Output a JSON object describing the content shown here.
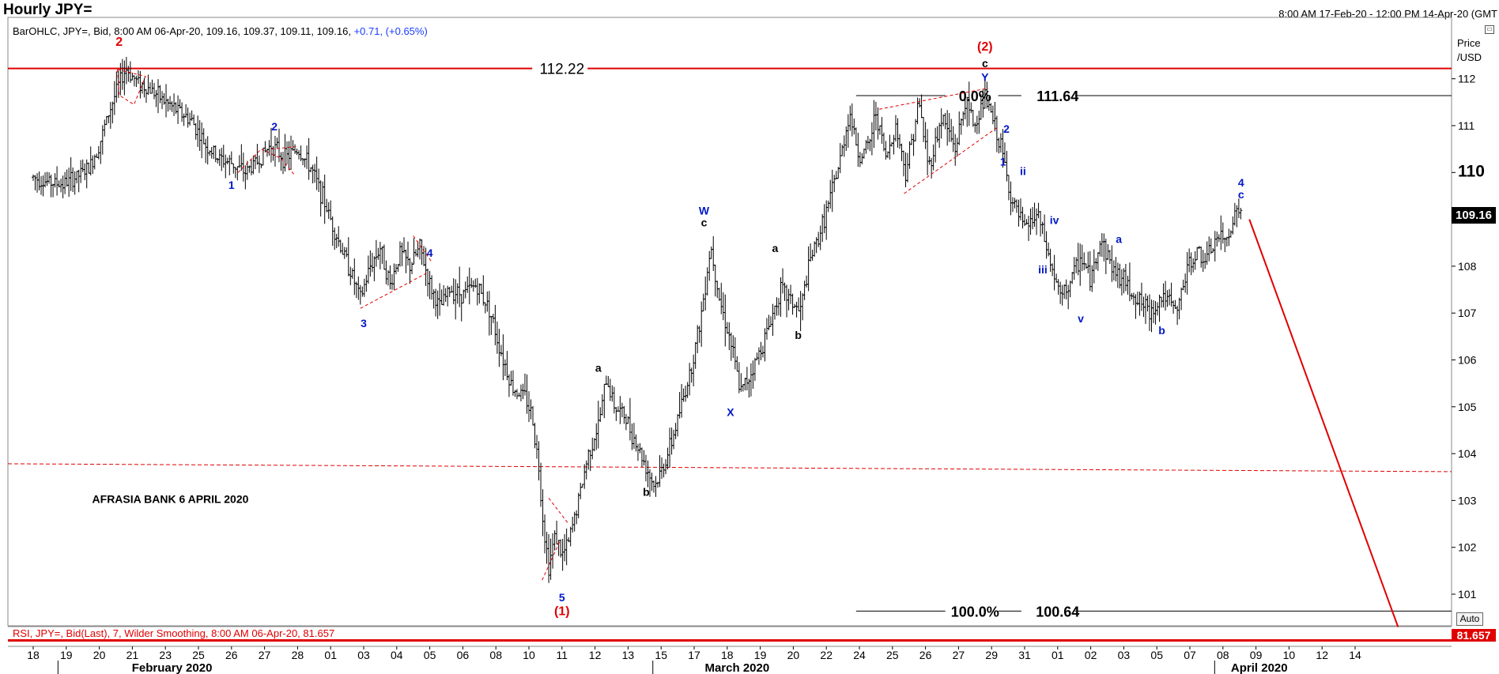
{
  "header": {
    "title": "Hourly JPY=",
    "range": "8:00 AM 17-Feb-20 - 12:00 PM 14-Apr-20 (GMT",
    "info_prefix": "BarOHLC, JPY=, Bid, 8:00 AM 06-Apr-20, 109.16, 109.37, 109.11, 109.16, ",
    "info_change": "+0.71, (+0.65%)"
  },
  "price_axis": {
    "header_line1": "Price",
    "header_line2": "/USD",
    "auto_label": "Auto"
  },
  "rsi": {
    "info": "RSI, JPY=, Bid(Last),  7, Wilder Smoothing, 8:00 AM 06-Apr-20, 81.657",
    "value": "81.657"
  },
  "colors": {
    "bars": "#000000",
    "resistance": "#e00000",
    "fib": "#000000",
    "wave_blue": "#0018c8",
    "wave_red": "#e00000",
    "trend": "#e00000"
  },
  "chart_data": {
    "type": "ohlc",
    "instrument": "JPY=",
    "interval": "Hourly",
    "ylim": [
      100.3,
      113.3
    ],
    "y_ticks": [
      {
        "value": 101,
        "label": "101"
      },
      {
        "value": 102,
        "label": "102"
      },
      {
        "value": 103,
        "label": "103"
      },
      {
        "value": 104,
        "label": "104"
      },
      {
        "value": 105,
        "label": "105"
      },
      {
        "value": 106,
        "label": "106"
      },
      {
        "value": 107,
        "label": "107"
      },
      {
        "value": 108,
        "label": "108"
      },
      {
        "value": 109,
        "label": "109"
      },
      {
        "value": 110,
        "label": "110",
        "major": true
      },
      {
        "value": 111,
        "label": "111"
      },
      {
        "value": 112,
        "label": "112"
      }
    ],
    "last_price": "109.16",
    "x_days": [
      "18",
      "19",
      "20",
      "21",
      "23",
      "25",
      "26",
      "27",
      "28",
      "01",
      "03",
      "04",
      "05",
      "06",
      "08",
      "10",
      "11",
      "12",
      "13",
      "15",
      "17",
      "18",
      "19",
      "20",
      "22",
      "24",
      "25",
      "26",
      "27",
      "29",
      "31",
      "01",
      "02",
      "03",
      "05",
      "07",
      "08",
      "09",
      "10",
      "12",
      "14"
    ],
    "x_months": [
      {
        "label": "February 2020",
        "after_day": 1
      },
      {
        "label": "March 2020",
        "after_day": 19
      },
      {
        "label": "April 2020",
        "after_day": 36
      }
    ],
    "price_path": [
      [
        0,
        109.9
      ],
      [
        0.4,
        109.8
      ],
      [
        0.9,
        109.75
      ],
      [
        1.3,
        109.9
      ],
      [
        1.7,
        110.1
      ],
      [
        2.0,
        110.6
      ],
      [
        2.3,
        111.3
      ],
      [
        2.6,
        111.9
      ],
      [
        2.8,
        112.22
      ],
      [
        3.0,
        112.05
      ],
      [
        3.2,
        111.9
      ],
      [
        3.6,
        111.75
      ],
      [
        4.0,
        111.5
      ],
      [
        4.4,
        111.3
      ],
      [
        4.8,
        111.1
      ],
      [
        5.2,
        110.6
      ],
      [
        5.6,
        110.3
      ],
      [
        6.0,
        110.2
      ],
      [
        6.4,
        110.0
      ],
      [
        6.8,
        110.25
      ],
      [
        7.2,
        110.6
      ],
      [
        7.6,
        110.3
      ],
      [
        8.0,
        110.5
      ],
      [
        8.4,
        110.1
      ],
      [
        8.8,
        109.4
      ],
      [
        9.2,
        108.6
      ],
      [
        9.6,
        107.9
      ],
      [
        9.9,
        107.3
      ],
      [
        10.2,
        108.0
      ],
      [
        10.5,
        108.4
      ],
      [
        10.8,
        107.6
      ],
      [
        11.1,
        108.3
      ],
      [
        11.4,
        108.0
      ],
      [
        11.7,
        108.4
      ],
      [
        12.0,
        107.6
      ],
      [
        12.3,
        107.1
      ],
      [
        12.6,
        107.5
      ],
      [
        13.0,
        107.4
      ],
      [
        13.4,
        107.6
      ],
      [
        13.8,
        107.1
      ],
      [
        14.1,
        106.3
      ],
      [
        14.5,
        105.4
      ],
      [
        14.9,
        105.2
      ],
      [
        15.1,
        104.8
      ],
      [
        15.3,
        103.7
      ],
      [
        15.45,
        102.4
      ],
      [
        15.6,
        101.6
      ],
      [
        15.8,
        102.3
      ],
      [
        16.0,
        101.8
      ],
      [
        16.2,
        102.1
      ],
      [
        16.5,
        103.0
      ],
      [
        16.8,
        104.0
      ],
      [
        17.1,
        104.6
      ],
      [
        17.35,
        105.6
      ],
      [
        17.6,
        105.0
      ],
      [
        17.9,
        104.8
      ],
      [
        18.2,
        104.3
      ],
      [
        18.5,
        103.8
      ],
      [
        18.8,
        103.3
      ],
      [
        19.0,
        103.6
      ],
      [
        19.3,
        104.2
      ],
      [
        19.6,
        105.0
      ],
      [
        19.9,
        105.8
      ],
      [
        20.2,
        106.9
      ],
      [
        20.5,
        108.45
      ],
      [
        20.8,
        107.2
      ],
      [
        21.1,
        106.4
      ],
      [
        21.4,
        105.3
      ],
      [
        21.7,
        105.7
      ],
      [
        22.0,
        106.2
      ],
      [
        22.3,
        106.8
      ],
      [
        22.6,
        107.5
      ],
      [
        22.9,
        107.3
      ],
      [
        23.2,
        107.0
      ],
      [
        23.5,
        108.1
      ],
      [
        23.8,
        108.7
      ],
      [
        24.1,
        109.4
      ],
      [
        24.4,
        110.2
      ],
      [
        24.7,
        111.3
      ],
      [
        25.0,
        110.3
      ],
      [
        25.3,
        110.6
      ],
      [
        25.5,
        111.3
      ],
      [
        25.8,
        110.3
      ],
      [
        26.1,
        111.0
      ],
      [
        26.4,
        110.0
      ],
      [
        26.8,
        111.5
      ],
      [
        27.1,
        110.1
      ],
      [
        27.5,
        111.2
      ],
      [
        27.9,
        110.5
      ],
      [
        28.2,
        111.5
      ],
      [
        28.5,
        111.0
      ],
      [
        28.8,
        111.62
      ],
      [
        29.0,
        111.2
      ],
      [
        29.3,
        110.5
      ],
      [
        29.6,
        109.4
      ],
      [
        30.0,
        108.8
      ],
      [
        30.4,
        109.1
      ],
      [
        30.8,
        108.0
      ],
      [
        31.1,
        107.3
      ],
      [
        31.4,
        107.7
      ],
      [
        31.7,
        108.2
      ],
      [
        32.0,
        107.7
      ],
      [
        32.3,
        108.6
      ],
      [
        32.7,
        107.9
      ],
      [
        33.0,
        107.7
      ],
      [
        33.4,
        107.3
      ],
      [
        33.8,
        107.0
      ],
      [
        34.2,
        107.4
      ],
      [
        34.6,
        107.0
      ],
      [
        34.9,
        107.9
      ],
      [
        35.2,
        108.3
      ],
      [
        35.5,
        108.1
      ],
      [
        35.8,
        108.6
      ],
      [
        36.1,
        108.55
      ],
      [
        36.4,
        109.2
      ],
      [
        36.55,
        109.2
      ]
    ],
    "levels": [
      {
        "name": "resistance",
        "value": 112.22,
        "label": "112.22"
      },
      {
        "name": "fib-0",
        "value": 111.64,
        "label": "0.0%",
        "price_label": "111.64"
      },
      {
        "name": "fib-100",
        "value": 100.64,
        "label": "100.0%",
        "price_label": "100.64"
      },
      {
        "name": "dashed-support",
        "value": 103.75
      }
    ],
    "annotations": [
      {
        "text": "2",
        "x": 2.6,
        "y": 112.7,
        "color": "red"
      },
      {
        "text": "2",
        "x": 7.3,
        "y": 110.9,
        "color": "blue"
      },
      {
        "text": "1",
        "x": 6.0,
        "y": 109.65,
        "color": "blue"
      },
      {
        "text": "3",
        "x": 10.0,
        "y": 106.7,
        "color": "blue"
      },
      {
        "text": "4",
        "x": 12.0,
        "y": 108.2,
        "color": "blue"
      },
      {
        "text": "5",
        "x": 16.0,
        "y": 100.85,
        "color": "blue"
      },
      {
        "text": "(1)",
        "x": 16.0,
        "y": 100.55,
        "color": "red"
      },
      {
        "text": "a",
        "x": 17.1,
        "y": 105.75,
        "color": "black"
      },
      {
        "text": "b",
        "x": 18.55,
        "y": 103.1,
        "color": "black"
      },
      {
        "text": "W",
        "x": 20.3,
        "y": 109.1,
        "color": "blue"
      },
      {
        "text": "c",
        "x": 20.3,
        "y": 108.85,
        "color": "black"
      },
      {
        "text": "X",
        "x": 21.1,
        "y": 104.8,
        "color": "blue"
      },
      {
        "text": "a",
        "x": 22.45,
        "y": 108.3,
        "color": "black"
      },
      {
        "text": "b",
        "x": 23.15,
        "y": 106.45,
        "color": "black"
      },
      {
        "text": "(2)",
        "x": 28.8,
        "y": 112.6,
        "color": "red"
      },
      {
        "text": "c",
        "x": 28.8,
        "y": 112.25,
        "color": "black"
      },
      {
        "text": "Y",
        "x": 28.8,
        "y": 111.95,
        "color": "blue"
      },
      {
        "text": "2",
        "x": 29.45,
        "y": 110.85,
        "color": "blue"
      },
      {
        "text": "1",
        "x": 29.35,
        "y": 110.15,
        "color": "blue"
      },
      {
        "text": "ii",
        "x": 29.95,
        "y": 109.95,
        "color": "blue"
      },
      {
        "text": "iv",
        "x": 30.9,
        "y": 108.9,
        "color": "blue"
      },
      {
        "text": "iii",
        "x": 30.55,
        "y": 107.85,
        "color": "blue"
      },
      {
        "text": "v",
        "x": 31.7,
        "y": 106.8,
        "color": "blue"
      },
      {
        "text": "a",
        "x": 32.85,
        "y": 108.5,
        "color": "blue"
      },
      {
        "text": "b",
        "x": 34.15,
        "y": 106.55,
        "color": "blue"
      },
      {
        "text": "4",
        "x": 36.55,
        "y": 109.7,
        "color": "blue"
      },
      {
        "text": "c",
        "x": 36.55,
        "y": 109.45,
        "color": "blue"
      }
    ],
    "watermark": "AFRASIA BANK 6 APRIL 2020",
    "projection": {
      "from": [
        36.8,
        109.0
      ],
      "to": [
        41.3,
        100.3
      ]
    }
  }
}
